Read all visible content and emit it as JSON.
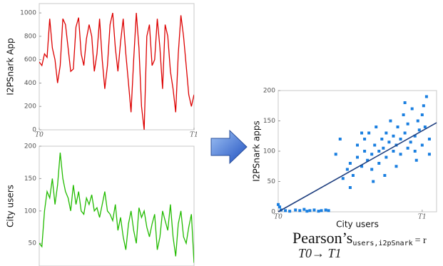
{
  "chart_data": [
    {
      "type": "line",
      "ylabel": "I2PSnark App",
      "color": "#dd0000",
      "values": [
        580,
        550,
        650,
        620,
        950,
        700,
        600,
        400,
        550,
        950,
        900,
        700,
        500,
        520,
        880,
        960,
        650,
        550,
        780,
        900,
        800,
        500,
        650,
        950,
        600,
        350,
        550,
        900,
        1000,
        700,
        500,
        750,
        950,
        650,
        400,
        150,
        600,
        1000,
        700,
        200,
        0,
        800,
        900,
        550,
        600,
        950,
        700,
        350,
        900,
        800,
        500,
        350,
        150,
        650,
        980,
        800,
        550,
        300,
        200,
        300
      ],
      "xlim": [
        0,
        59
      ],
      "xticks": [
        {
          "value": 0,
          "label": "T0"
        },
        {
          "value": 59,
          "label": "T1"
        }
      ],
      "ylim": [
        0,
        1080
      ],
      "yticks": [
        0,
        200,
        400,
        600,
        800,
        1000
      ]
    },
    {
      "type": "line",
      "ylabel": "City users",
      "color": "#22bb00",
      "values": [
        50,
        45,
        100,
        130,
        120,
        150,
        110,
        140,
        190,
        150,
        130,
        120,
        100,
        140,
        110,
        130,
        100,
        95,
        120,
        110,
        125,
        100,
        105,
        90,
        110,
        130,
        100,
        95,
        85,
        110,
        70,
        90,
        60,
        40,
        80,
        100,
        70,
        50,
        105,
        90,
        100,
        75,
        60,
        80,
        95,
        40,
        60,
        100,
        85,
        70,
        110,
        60,
        30,
        80,
        100,
        60,
        50,
        75,
        95,
        20
      ],
      "xlim": [
        0,
        59
      ],
      "ylim": [
        15,
        200
      ],
      "yticks": [
        50,
        100,
        150,
        200
      ]
    },
    {
      "type": "scatter",
      "xlabel": "City users",
      "ylabel": "I2PSnark apps",
      "color": "#1a7fe0",
      "x": [
        0.45,
        0.48,
        0.5,
        0.52,
        0.55,
        0.55,
        0.58,
        0.6,
        0.6,
        0.62,
        0.63,
        0.65,
        0.65,
        0.67,
        0.68,
        0.7,
        0.7,
        0.72,
        0.73,
        0.75,
        0.75,
        0.77,
        0.78,
        0.8,
        0.8,
        0.82,
        0.83,
        0.85,
        0.85,
        0.87,
        0.88,
        0.9,
        0.9,
        0.92,
        0.93,
        0.95,
        0.95,
        0.97,
        0.98,
        1.0,
        1.0,
        1.02,
        1.03,
        1.05,
        1.05,
        0.5,
        0.58,
        0.66,
        0.74,
        0.82,
        0.88,
        0.96,
        1.01,
        0.4,
        0.43,
        0.0,
        0.01,
        0.02,
        0.05,
        0.08,
        0.12,
        0.15,
        0.18,
        0.2,
        0.22,
        0.25,
        0.28,
        0.3,
        0.33,
        0.35
      ],
      "values": [
        55,
        70,
        80,
        60,
        90,
        110,
        75,
        100,
        120,
        85,
        130,
        95,
        70,
        110,
        140,
        100,
        80,
        120,
        105,
        90,
        130,
        115,
        150,
        100,
        125,
        110,
        140,
        95,
        120,
        160,
        130,
        105,
        145,
        115,
        170,
        125,
        100,
        150,
        135,
        110,
        160,
        140,
        190,
        120,
        95,
        40,
        130,
        50,
        60,
        75,
        180,
        85,
        175,
        95,
        120,
        12,
        8,
        3,
        2,
        1,
        3,
        2,
        4,
        1,
        2,
        3,
        1,
        2,
        3,
        2
      ],
      "trend_line": {
        "color": "#1f3f7f",
        "x": [
          0,
          1.1
        ],
        "y": [
          0,
          147
        ]
      },
      "xlim": [
        0,
        1.1
      ],
      "xticks": [
        {
          "value": 0,
          "label": "T0"
        },
        {
          "value": 1,
          "label": "T1"
        }
      ],
      "ylim": [
        0,
        200
      ],
      "yticks": [
        0,
        50,
        100,
        150,
        200
      ]
    }
  ],
  "formula": {
    "main": "Pearson’s",
    "subscript": "users,i2pSnark",
    "equals": "= r",
    "range": "T0→ T1"
  }
}
